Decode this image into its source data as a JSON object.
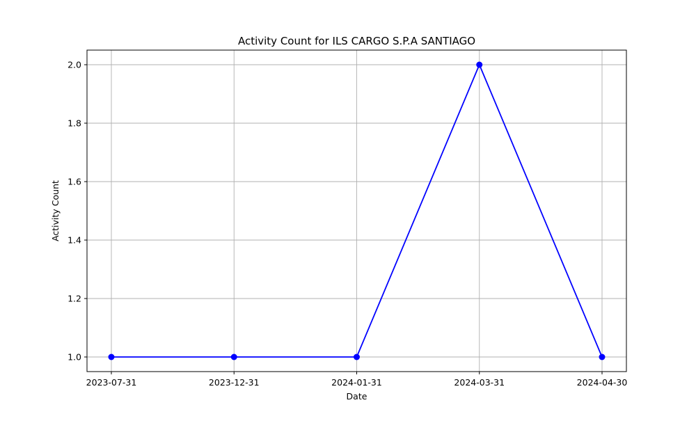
{
  "chart_data": {
    "type": "line",
    "title": "Activity Count for ILS CARGO S.P.A SANTIAGO",
    "xlabel": "Date",
    "ylabel": "Activity Count",
    "categories": [
      "2023-07-31",
      "2023-12-31",
      "2024-01-31",
      "2024-03-31",
      "2024-04-30"
    ],
    "series": [
      {
        "values": [
          1,
          1,
          1,
          2,
          1
        ]
      }
    ],
    "y_ticks": [
      "1.0",
      "1.2",
      "1.4",
      "1.6",
      "1.8",
      "2.0"
    ],
    "ylim": [
      0.95,
      2.05
    ],
    "grid": true,
    "line_color": "#0000ff",
    "marker": "circle"
  }
}
